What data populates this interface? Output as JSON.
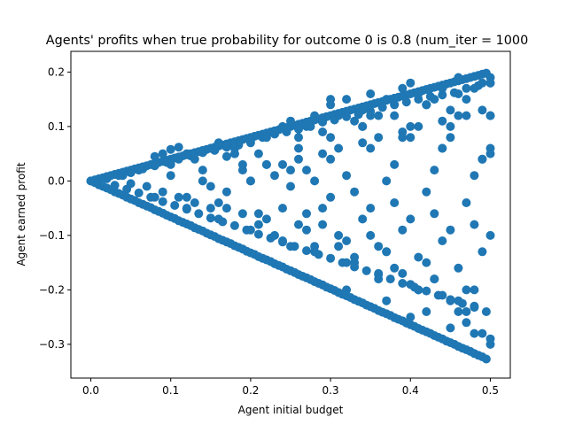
{
  "chart_data": {
    "type": "scatter",
    "title": "Agents' profits when true probability for outcome 0 is 0.8 (num_iter = 1000",
    "xlabel": "Agent initial budget",
    "ylabel": "Agent earned profit",
    "xlim": [
      -0.025,
      0.525
    ],
    "ylim": [
      -0.362,
      0.238
    ],
    "xticks": [
      0.0,
      0.1,
      0.2,
      0.3,
      0.4,
      0.5
    ],
    "xtick_labels": [
      "0.0",
      "0.1",
      "0.2",
      "0.3",
      "0.4",
      "0.5"
    ],
    "yticks": [
      -0.3,
      -0.2,
      -0.1,
      0.0,
      0.1,
      0.2
    ],
    "ytick_labels": [
      "−0.3",
      "−0.2",
      "−0.1",
      "0.0",
      "0.1",
      "0.2"
    ],
    "grid": false,
    "legend": "none",
    "marker_color": "#1f77b4",
    "series": [
      {
        "x": [
          0.0,
          0.005,
          0.01,
          0.015,
          0.02,
          0.025,
          0.03,
          0.035,
          0.04,
          0.045,
          0.05,
          0.055,
          0.06,
          0.065,
          0.07,
          0.075,
          0.08,
          0.085,
          0.09,
          0.095,
          0.1,
          0.105,
          0.11,
          0.115,
          0.12,
          0.125,
          0.13,
          0.135,
          0.14,
          0.145,
          0.15,
          0.155,
          0.16,
          0.165,
          0.17,
          0.175,
          0.18,
          0.185,
          0.19,
          0.195,
          0.2,
          0.205,
          0.21,
          0.215,
          0.22,
          0.225,
          0.23,
          0.235,
          0.24,
          0.245,
          0.25,
          0.255,
          0.26,
          0.265,
          0.27,
          0.275,
          0.28,
          0.285,
          0.29,
          0.295,
          0.3,
          0.305,
          0.31,
          0.315,
          0.32,
          0.325,
          0.33,
          0.335,
          0.34,
          0.345,
          0.35,
          0.355,
          0.36,
          0.365,
          0.37,
          0.375,
          0.38,
          0.385,
          0.39,
          0.395,
          0.4,
          0.405,
          0.41,
          0.415,
          0.42,
          0.425,
          0.43,
          0.435,
          0.44,
          0.445,
          0.45,
          0.455,
          0.46,
          0.465,
          0.47,
          0.475,
          0.48,
          0.485,
          0.49,
          0.495,
          0.0,
          0.005,
          0.01,
          0.015,
          0.02,
          0.025,
          0.03,
          0.035,
          0.04,
          0.045,
          0.05,
          0.055,
          0.06,
          0.065,
          0.07,
          0.075,
          0.08,
          0.085,
          0.09,
          0.095,
          0.1,
          0.105,
          0.11,
          0.115,
          0.12,
          0.125,
          0.13,
          0.135,
          0.14,
          0.145,
          0.15,
          0.155,
          0.16,
          0.165,
          0.17,
          0.175,
          0.18,
          0.185,
          0.19,
          0.195,
          0.2,
          0.205,
          0.21,
          0.215,
          0.22,
          0.225,
          0.23,
          0.235,
          0.24,
          0.245,
          0.25,
          0.255,
          0.26,
          0.265,
          0.27,
          0.275,
          0.28,
          0.285,
          0.29,
          0.295,
          0.3,
          0.305,
          0.31,
          0.315,
          0.32,
          0.325,
          0.33,
          0.335,
          0.34,
          0.345,
          0.35,
          0.355,
          0.36,
          0.365,
          0.37,
          0.375,
          0.38,
          0.385,
          0.39,
          0.395,
          0.4,
          0.405,
          0.41,
          0.415,
          0.42,
          0.425,
          0.43,
          0.435,
          0.44,
          0.445,
          0.45,
          0.455,
          0.46,
          0.465,
          0.47,
          0.475,
          0.48,
          0.485,
          0.49,
          0.495,
          0.02,
          0.035,
          0.05,
          0.065,
          0.08,
          0.095,
          0.11,
          0.125,
          0.14,
          0.155,
          0.17,
          0.185,
          0.2,
          0.215,
          0.23,
          0.245,
          0.26,
          0.275,
          0.29,
          0.305,
          0.32,
          0.335,
          0.35,
          0.365,
          0.38,
          0.395,
          0.41,
          0.425,
          0.44,
          0.455,
          0.47,
          0.485,
          0.5,
          0.5,
          0.03,
          0.045,
          0.06,
          0.075,
          0.09,
          0.105,
          0.12,
          0.135,
          0.15,
          0.165,
          0.18,
          0.195,
          0.21,
          0.225,
          0.24,
          0.255,
          0.27,
          0.285,
          0.3,
          0.315,
          0.33,
          0.345,
          0.36,
          0.375,
          0.39,
          0.405,
          0.42,
          0.435,
          0.45,
          0.465,
          0.48,
          0.495,
          0.5,
          0.04,
          0.06,
          0.08,
          0.09,
          0.1,
          0.11,
          0.12,
          0.13,
          0.14,
          0.15,
          0.16,
          0.17,
          0.18,
          0.19,
          0.2,
          0.21,
          0.22,
          0.23,
          0.24,
          0.25,
          0.26,
          0.27,
          0.28,
          0.29,
          0.3,
          0.31,
          0.32,
          0.33,
          0.34,
          0.35,
          0.36,
          0.37,
          0.38,
          0.39,
          0.4,
          0.41,
          0.42,
          0.43,
          0.44,
          0.45,
          0.46,
          0.47,
          0.48,
          0.49,
          0.05,
          0.07,
          0.09,
          0.11,
          0.13,
          0.15,
          0.17,
          0.19,
          0.21,
          0.23,
          0.25,
          0.27,
          0.29,
          0.31,
          0.33,
          0.35,
          0.37,
          0.39,
          0.41,
          0.43,
          0.45,
          0.47,
          0.49,
          0.06,
          0.1,
          0.14,
          0.18,
          0.22,
          0.26,
          0.3,
          0.34,
          0.38,
          0.42,
          0.46,
          0.5,
          0.08,
          0.12,
          0.16,
          0.2,
          0.24,
          0.28,
          0.32,
          0.36,
          0.4,
          0.44,
          0.48,
          0.1,
          0.15,
          0.2,
          0.25,
          0.3,
          0.35,
          0.4,
          0.45,
          0.5,
          0.12,
          0.17,
          0.22,
          0.27,
          0.32,
          0.37,
          0.42,
          0.47,
          0.14,
          0.19,
          0.24,
          0.29,
          0.34,
          0.39,
          0.44,
          0.49,
          0.16,
          0.21,
          0.26,
          0.31,
          0.36,
          0.41,
          0.46,
          0.18,
          0.23,
          0.28,
          0.33,
          0.38,
          0.43,
          0.48,
          0.2,
          0.25,
          0.3,
          0.35,
          0.4,
          0.45,
          0.5,
          0.22,
          0.27,
          0.32,
          0.37,
          0.42,
          0.47,
          0.24,
          0.29,
          0.34,
          0.39,
          0.44,
          0.49,
          0.26,
          0.31,
          0.36,
          0.41,
          0.46,
          0.28,
          0.33,
          0.38,
          0.43,
          0.48,
          0.3,
          0.35,
          0.4,
          0.45,
          0.5,
          0.32,
          0.37,
          0.42,
          0.47,
          0.34,
          0.39,
          0.44,
          0.49,
          0.36,
          0.41,
          0.46,
          0.38,
          0.43,
          0.48,
          0.4,
          0.45,
          0.5,
          0.42,
          0.47,
          0.44,
          0.49,
          0.46,
          0.48,
          0.5,
          0.5
        ],
        "y": [
          0.0,
          0.002,
          0.004,
          0.006,
          0.008,
          0.01,
          0.012,
          0.014,
          0.016,
          0.018,
          0.02,
          0.022,
          0.024,
          0.026,
          0.028,
          0.03,
          0.032,
          0.034,
          0.036,
          0.038,
          0.04,
          0.042,
          0.044,
          0.046,
          0.048,
          0.05,
          0.052,
          0.054,
          0.056,
          0.058,
          0.06,
          0.062,
          0.064,
          0.066,
          0.068,
          0.07,
          0.072,
          0.074,
          0.076,
          0.078,
          0.08,
          0.082,
          0.084,
          0.086,
          0.088,
          0.09,
          0.092,
          0.094,
          0.096,
          0.098,
          0.1,
          0.102,
          0.104,
          0.106,
          0.108,
          0.11,
          0.112,
          0.114,
          0.116,
          0.118,
          0.12,
          0.122,
          0.124,
          0.126,
          0.128,
          0.13,
          0.132,
          0.134,
          0.136,
          0.138,
          0.14,
          0.142,
          0.144,
          0.146,
          0.148,
          0.15,
          0.152,
          0.154,
          0.156,
          0.158,
          0.16,
          0.162,
          0.164,
          0.166,
          0.168,
          0.17,
          0.172,
          0.174,
          0.176,
          0.178,
          0.18,
          0.182,
          0.184,
          0.186,
          0.188,
          0.19,
          0.192,
          0.194,
          0.196,
          0.198,
          0.0,
          -0.003,
          -0.007,
          -0.01,
          -0.013,
          -0.016,
          -0.02,
          -0.023,
          -0.026,
          -0.03,
          -0.033,
          -0.036,
          -0.04,
          -0.043,
          -0.046,
          -0.049,
          -0.053,
          -0.056,
          -0.059,
          -0.063,
          -0.066,
          -0.069,
          -0.073,
          -0.076,
          -0.079,
          -0.082,
          -0.086,
          -0.089,
          -0.092,
          -0.096,
          -0.099,
          -0.102,
          -0.106,
          -0.109,
          -0.112,
          -0.115,
          -0.119,
          -0.122,
          -0.125,
          -0.129,
          -0.132,
          -0.135,
          -0.139,
          -0.142,
          -0.145,
          -0.148,
          -0.152,
          -0.155,
          -0.158,
          -0.162,
          -0.165,
          -0.168,
          -0.172,
          -0.175,
          -0.178,
          -0.181,
          -0.185,
          -0.188,
          -0.191,
          -0.195,
          -0.198,
          -0.201,
          -0.205,
          -0.208,
          -0.211,
          -0.214,
          -0.218,
          -0.221,
          -0.224,
          -0.228,
          -0.231,
          -0.234,
          -0.238,
          -0.241,
          -0.244,
          -0.247,
          -0.251,
          -0.254,
          -0.257,
          -0.261,
          -0.264,
          -0.267,
          -0.271,
          -0.274,
          -0.277,
          -0.28,
          -0.284,
          -0.287,
          -0.29,
          -0.294,
          -0.297,
          -0.3,
          -0.304,
          -0.307,
          -0.31,
          -0.313,
          -0.317,
          -0.32,
          -0.323,
          -0.327,
          0.004,
          0.01,
          0.015,
          0.022,
          0.028,
          0.034,
          0.04,
          0.046,
          0.052,
          0.056,
          0.062,
          0.066,
          0.075,
          0.08,
          0.086,
          0.09,
          0.095,
          0.1,
          0.108,
          0.112,
          0.118,
          0.122,
          0.128,
          0.135,
          0.14,
          0.145,
          0.15,
          0.155,
          0.158,
          0.162,
          0.17,
          0.175,
          0.18,
          0.19,
          -0.008,
          -0.015,
          -0.022,
          -0.03,
          -0.038,
          -0.045,
          -0.052,
          -0.06,
          -0.068,
          -0.075,
          -0.082,
          -0.09,
          -0.098,
          -0.105,
          -0.112,
          -0.12,
          -0.128,
          -0.135,
          -0.142,
          -0.15,
          -0.158,
          -0.165,
          -0.172,
          -0.18,
          -0.188,
          -0.195,
          -0.202,
          -0.21,
          -0.218,
          -0.225,
          -0.232,
          -0.24,
          -0.3,
          0.01,
          0.02,
          0.045,
          0.05,
          0.058,
          0.062,
          0.05,
          0.04,
          0.055,
          0.06,
          0.07,
          0.045,
          0.06,
          0.03,
          0.07,
          0.05,
          0.08,
          0.09,
          0.1,
          0.11,
          0.08,
          0.1,
          0.12,
          0.09,
          0.14,
          0.12,
          0.15,
          0.11,
          0.13,
          0.16,
          0.12,
          0.15,
          0.14,
          0.17,
          0.18,
          0.16,
          0.14,
          0.15,
          0.17,
          0.13,
          0.19,
          0.15,
          0.17,
          0.18,
          -0.005,
          -0.01,
          -0.02,
          -0.03,
          -0.04,
          -0.05,
          -0.02,
          -0.06,
          -0.08,
          -0.1,
          -0.12,
          -0.06,
          -0.08,
          -0.12,
          -0.15,
          -0.1,
          -0.13,
          -0.17,
          -0.2,
          -0.18,
          -0.22,
          -0.24,
          -0.28,
          0.02,
          0.03,
          0.02,
          0.05,
          0.03,
          0.06,
          0.08,
          0.1,
          0.12,
          0.14,
          0.16,
          0.18,
          -0.03,
          -0.05,
          -0.07,
          -0.09,
          -0.11,
          -0.13,
          -0.15,
          -0.17,
          -0.19,
          -0.21,
          -0.23,
          0.01,
          -0.01,
          0.0,
          0.02,
          0.04,
          0.06,
          0.08,
          0.1,
          0.12,
          -0.03,
          -0.05,
          -0.07,
          -0.09,
          -0.11,
          -0.13,
          -0.15,
          -0.2,
          0.0,
          0.02,
          0.03,
          0.05,
          0.07,
          0.09,
          0.11,
          0.13,
          -0.04,
          -0.06,
          -0.08,
          -0.1,
          -0.12,
          -0.14,
          -0.16,
          0.05,
          0.01,
          0.0,
          -0.02,
          -0.04,
          -0.06,
          -0.08,
          0.0,
          -0.01,
          -0.03,
          -0.05,
          -0.07,
          -0.09,
          -0.1,
          0.03,
          0.02,
          0.01,
          0.0,
          -0.02,
          -0.04,
          -0.05,
          -0.05,
          -0.07,
          -0.09,
          -0.11,
          -0.13,
          0.04,
          0.06,
          0.08,
          0.1,
          0.12,
          -0.12,
          -0.14,
          -0.16,
          -0.18,
          -0.2,
          0.15,
          0.12,
          0.1,
          0.08,
          0.06,
          -0.2,
          -0.22,
          -0.24,
          -0.26,
          0.1,
          0.08,
          0.06,
          0.04,
          -0.18,
          -0.2,
          -0.22,
          0.03,
          0.02,
          0.01,
          -0.25,
          -0.27,
          -0.29,
          0.14,
          0.12,
          0.06,
          0.04,
          -0.24,
          -0.28,
          0.12,
          0.05
        ]
      }
    ]
  }
}
